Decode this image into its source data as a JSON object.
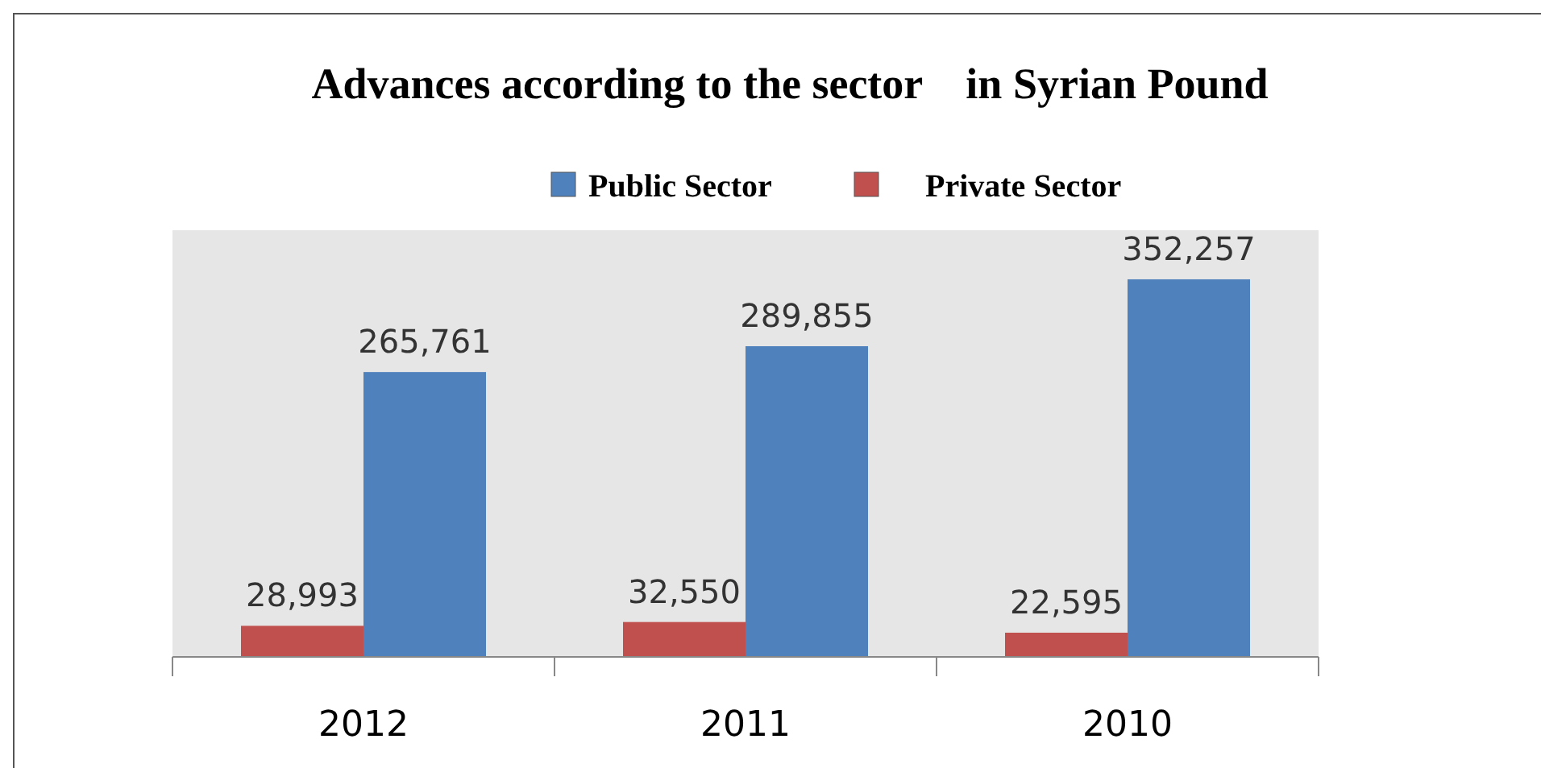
{
  "chart_data": {
    "type": "bar",
    "title": "Advances according to the sector    in Syrian Pound",
    "categories": [
      "2012",
      "2011",
      "2010"
    ],
    "series": [
      {
        "name": "Public Sector",
        "color": "#4f81bd",
        "values": [
          265761,
          289855,
          352257
        ],
        "value_labels": [
          "265,761",
          "289,855",
          "352,257"
        ]
      },
      {
        "name": "Private Sector",
        "color": "#c0504d",
        "values": [
          28993,
          32550,
          22595
        ],
        "value_labels": [
          "28,993",
          "32,550",
          "22,595"
        ]
      }
    ],
    "legend": "top",
    "grid": false
  }
}
